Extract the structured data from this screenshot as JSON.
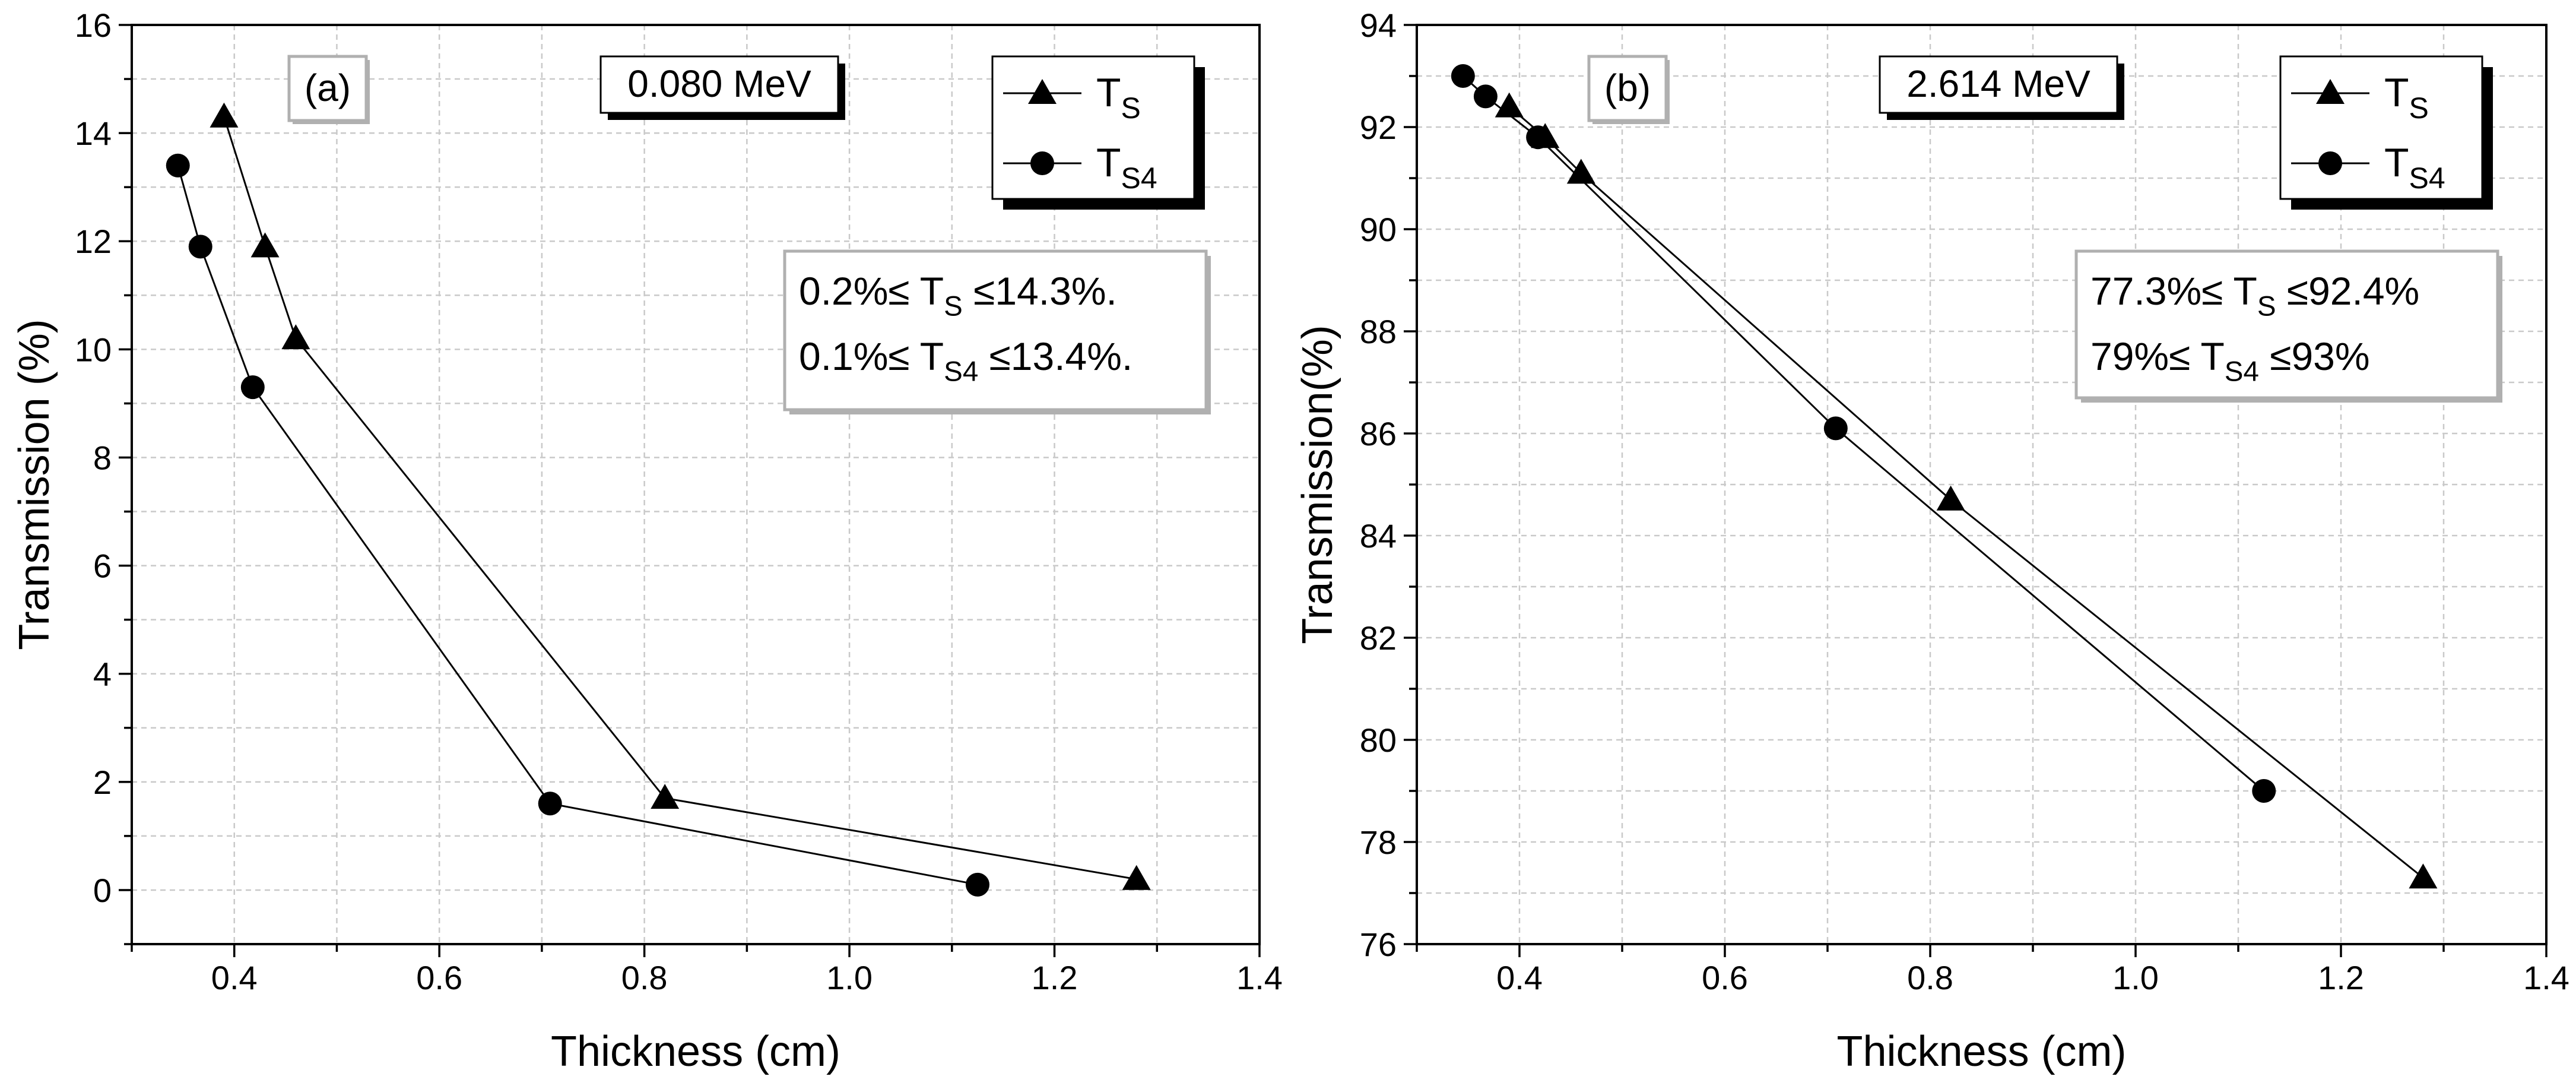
{
  "chart_data": [
    {
      "type": "line",
      "panel_label": "(a)",
      "energy_label": "0.080 MeV",
      "xlabel": "Thickness (cm)",
      "ylabel": "Transmission (%)",
      "xlim": [
        0.3,
        1.4
      ],
      "ylim": [
        -1,
        16
      ],
      "x_ticks": [
        "0.4",
        "0.6",
        "0.8",
        "1.0",
        "1.2",
        "1.4"
      ],
      "y_ticks": [
        "0",
        "2",
        "4",
        "6",
        "8",
        "10",
        "12",
        "14",
        "16"
      ],
      "legend_position": "top-right",
      "series": [
        {
          "name": "T",
          "subscript": "S",
          "marker": "triangle",
          "x": [
            0.39,
            0.43,
            0.46,
            0.82,
            1.28
          ],
          "y": [
            14.3,
            11.9,
            10.2,
            1.7,
            0.2
          ]
        },
        {
          "name": "T",
          "subscript": "S4",
          "marker": "circle",
          "x": [
            0.345,
            0.367,
            0.418,
            0.708,
            1.125
          ],
          "y": [
            13.4,
            11.9,
            9.3,
            1.6,
            0.1
          ]
        }
      ],
      "annotation": {
        "line1": {
          "pre": "0.2%≤ T",
          "sub": "S",
          "post": " ≤14.3%."
        },
        "line2": {
          "pre": "0.1%≤ T",
          "sub": "S4",
          "post": " ≤13.4%."
        }
      }
    },
    {
      "type": "line",
      "panel_label": "(b)",
      "energy_label": "2.614 MeV",
      "xlabel": "Thickness (cm)",
      "ylabel": "Transmission(%)",
      "xlim": [
        0.3,
        1.4
      ],
      "ylim": [
        76,
        94
      ],
      "x_ticks": [
        "0.4",
        "0.6",
        "0.8",
        "1.0",
        "1.2",
        "1.4"
      ],
      "y_ticks": [
        "76",
        "78",
        "80",
        "82",
        "84",
        "86",
        "88",
        "90",
        "92",
        "94"
      ],
      "legend_position": "top-right",
      "series": [
        {
          "name": "T",
          "subscript": "S",
          "marker": "triangle",
          "x": [
            0.39,
            0.425,
            0.46,
            0.82,
            1.28
          ],
          "y": [
            92.4,
            91.8,
            91.1,
            84.7,
            77.3
          ]
        },
        {
          "name": "T",
          "subscript": "S4",
          "marker": "circle",
          "x": [
            0.345,
            0.367,
            0.418,
            0.708,
            1.125
          ],
          "y": [
            93.0,
            92.6,
            91.8,
            86.1,
            79.0
          ]
        }
      ],
      "annotation": {
        "line1": {
          "pre": "77.3%≤ T",
          "sub": "S",
          "post": " ≤92.4%"
        },
        "line2": {
          "pre": "79%≤ T",
          "sub": "S4",
          "post": " ≤93%"
        }
      }
    }
  ]
}
